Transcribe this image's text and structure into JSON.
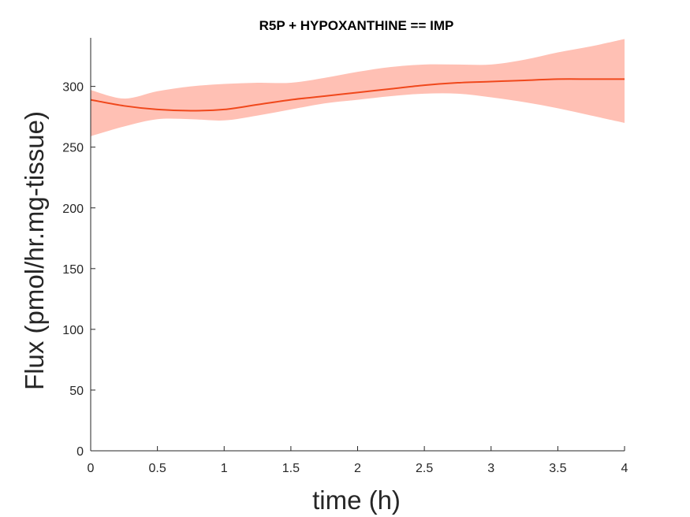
{
  "chart_data": {
    "type": "area",
    "title": "R5P + HYPOXANTHINE == IMP",
    "xlabel": "time (h)",
    "ylabel": "Flux (pmol/hr.mg-tissue)",
    "xlim": [
      0,
      4
    ],
    "ylim": [
      0,
      340
    ],
    "xticks": [
      0,
      0.5,
      1,
      1.5,
      2,
      2.5,
      3,
      3.5,
      4
    ],
    "xtick_labels": [
      "0",
      "0.5",
      "1",
      "1.5",
      "2",
      "2.5",
      "3",
      "3.5",
      "4"
    ],
    "yticks": [
      0,
      50,
      100,
      150,
      200,
      250,
      300
    ],
    "ytick_labels": [
      "0",
      "50",
      "100",
      "150",
      "200",
      "250",
      "300"
    ],
    "grid": false,
    "legend": "none",
    "series": [
      {
        "x": [
          0,
          0.25,
          0.5,
          0.75,
          1,
          1.25,
          1.5,
          1.75,
          2,
          2.25,
          2.5,
          2.75,
          3,
          3.25,
          3.5,
          3.75,
          4
        ],
        "mean": [
          289,
          284,
          281,
          280,
          281,
          285,
          289,
          292,
          295,
          298,
          301,
          303,
          304,
          305,
          306,
          306,
          306
        ],
        "upper": [
          297,
          290,
          296,
          300,
          302,
          303,
          303,
          307,
          312,
          316,
          318,
          318,
          318,
          322,
          328,
          333,
          339
        ],
        "lower": [
          259,
          267,
          273,
          273,
          272,
          276,
          281,
          286,
          289,
          292,
          294,
          294,
          291,
          287,
          282,
          276,
          270
        ],
        "line_color": "#f0481c",
        "band_color": "#ffc0b4"
      }
    ]
  }
}
